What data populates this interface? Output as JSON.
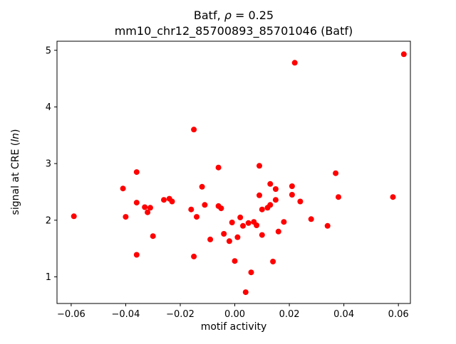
{
  "chart_data": {
    "type": "scatter",
    "title_line1_prefix": "Batf, ",
    "title_line1_rho": "ρ",
    "title_line1_suffix": " = 0.25",
    "title_line2": "mm10_chr12_85700893_85701046 (Batf)",
    "xlabel": "motif activity",
    "ylabel_prefix": "signal at CRE (",
    "ylabel_italic": "ln",
    "ylabel_suffix": ")",
    "marker_color": "#ff0000",
    "axis_color": "#000000",
    "grid": false,
    "legend_position": "none",
    "xlim": [
      -0.0652,
      0.0644
    ],
    "ylim": [
      0.53,
      5.16
    ],
    "xticks": {
      "values": [
        -0.06,
        -0.04,
        -0.02,
        0.0,
        0.02,
        0.04,
        0.06
      ],
      "labels": [
        "−0.06",
        "−0.04",
        "−0.02",
        "0.00",
        "0.02",
        "0.04",
        "0.06"
      ]
    },
    "yticks": {
      "values": [
        1,
        2,
        3,
        4,
        5
      ],
      "labels": [
        "1",
        "2",
        "3",
        "4",
        "5"
      ]
    },
    "points": [
      [
        -0.059,
        2.07
      ],
      [
        -0.041,
        2.56
      ],
      [
        -0.04,
        2.06
      ],
      [
        -0.036,
        2.85
      ],
      [
        -0.036,
        2.31
      ],
      [
        -0.036,
        1.39
      ],
      [
        -0.033,
        2.23
      ],
      [
        -0.032,
        2.14
      ],
      [
        -0.031,
        2.22
      ],
      [
        -0.03,
        1.72
      ],
      [
        -0.026,
        2.36
      ],
      [
        -0.024,
        2.38
      ],
      [
        -0.023,
        2.33
      ],
      [
        -0.016,
        2.19
      ],
      [
        -0.015,
        3.6
      ],
      [
        -0.015,
        1.36
      ],
      [
        -0.014,
        2.06
      ],
      [
        -0.012,
        2.59
      ],
      [
        -0.011,
        2.27
      ],
      [
        -0.009,
        1.66
      ],
      [
        -0.006,
        2.93
      ],
      [
        -0.006,
        2.25
      ],
      [
        -0.005,
        2.21
      ],
      [
        -0.004,
        1.76
      ],
      [
        -0.002,
        1.63
      ],
      [
        -0.001,
        1.96
      ],
      [
        0.0,
        1.28
      ],
      [
        0.001,
        1.7
      ],
      [
        0.002,
        2.05
      ],
      [
        0.003,
        1.9
      ],
      [
        0.004,
        0.73
      ],
      [
        0.005,
        1.95
      ],
      [
        0.006,
        1.08
      ],
      [
        0.007,
        1.97
      ],
      [
        0.008,
        1.91
      ],
      [
        0.009,
        2.96
      ],
      [
        0.009,
        2.44
      ],
      [
        0.01,
        2.19
      ],
      [
        0.01,
        1.74
      ],
      [
        0.012,
        2.22
      ],
      [
        0.013,
        2.64
      ],
      [
        0.013,
        2.27
      ],
      [
        0.014,
        1.27
      ],
      [
        0.015,
        2.55
      ],
      [
        0.015,
        2.36
      ],
      [
        0.016,
        1.8
      ],
      [
        0.018,
        1.97
      ],
      [
        0.021,
        2.6
      ],
      [
        0.021,
        2.45
      ],
      [
        0.022,
        4.78
      ],
      [
        0.024,
        2.33
      ],
      [
        0.028,
        2.02
      ],
      [
        0.034,
        1.9
      ],
      [
        0.037,
        2.83
      ],
      [
        0.038,
        2.41
      ],
      [
        0.058,
        2.41
      ],
      [
        0.062,
        4.93
      ]
    ]
  }
}
